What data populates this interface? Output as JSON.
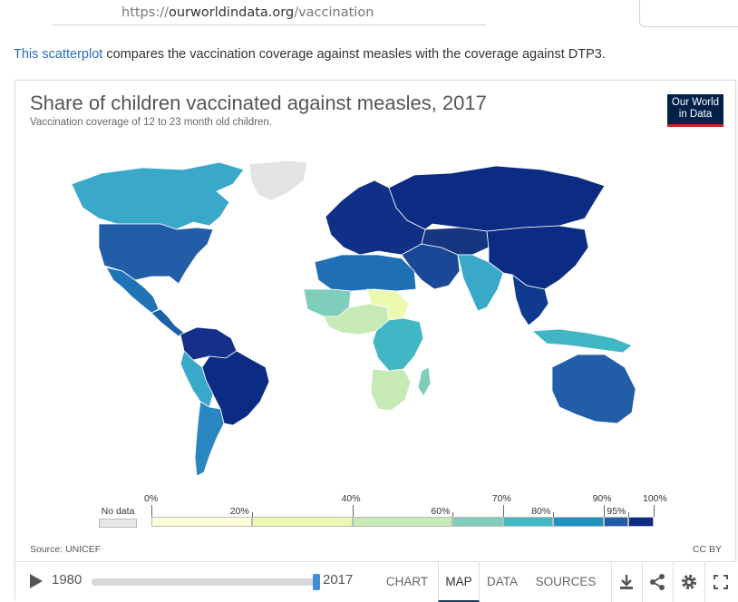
{
  "browser": {
    "url_prefix": "https://",
    "url_host": "ourworldindata.org",
    "url_path": "/vaccination"
  },
  "intro": {
    "link_text": "This scatterplot",
    "rest_text": " compares the vaccination coverage against measles with the coverage against DTP3."
  },
  "chart": {
    "title": "Share of children vaccinated against measles, 2017",
    "subtitle": "Vaccination coverage of 12 to 23 month old children.",
    "logo_line1": "Our World",
    "logo_line2": "in Data",
    "source": "Source: UNICEF",
    "license": "CC BY"
  },
  "chart_data": {
    "type": "heatmap",
    "title": "Share of children vaccinated against measles, 2017",
    "subtitle": "Vaccination coverage of 12 to 23 month old children.",
    "legend": {
      "no_data_label": "No data",
      "no_data_color": "#e8e8e8",
      "bins": [
        {
          "from": 0,
          "to": 20,
          "color": "#ffffd9"
        },
        {
          "from": 20,
          "to": 40,
          "color": "#edf8b1"
        },
        {
          "from": 40,
          "to": 60,
          "color": "#c7e9b4"
        },
        {
          "from": 60,
          "to": 70,
          "color": "#7fcdbb"
        },
        {
          "from": 70,
          "to": 80,
          "color": "#41b6c4"
        },
        {
          "from": 80,
          "to": 90,
          "color": "#1d91c0"
        },
        {
          "from": 90,
          "to": 95,
          "color": "#225ea8"
        },
        {
          "from": 95,
          "to": 100,
          "color": "#0c2c84"
        }
      ],
      "upper_labels": [
        "0%",
        "40%",
        "70%",
        "90%",
        "100%"
      ],
      "lower_labels": [
        "20%",
        "60%",
        "80%",
        "95%"
      ]
    }
  },
  "map_colors": {
    "greenland": "#e3e3e3",
    "canada": "#3aa8c9",
    "usa": "#225ea8",
    "mexico": "#1f74b7",
    "central_america": "#1d5fa8",
    "south_america_north": "#16308a",
    "brazil": "#0c2c84",
    "andes": "#3aa8c9",
    "southern_cone": "#2a86c0",
    "europe": "#102f86",
    "russia": "#0c2c84",
    "middle_east": "#1a4796",
    "central_asia": "#16367f",
    "south_asia": "#3aa8c9",
    "east_asia": "#0c2c84",
    "southeast_asia": "#0f3a8f",
    "indonesia": "#41b6c4",
    "australia": "#225ea8",
    "north_africa": "#1f6fb4",
    "sahel_west": "#7fcdbb",
    "west_africa_low": "#c7e9b4",
    "central_africa": "#edf8b1",
    "east_africa": "#41b6c4",
    "southern_africa": "#c7e9b4",
    "madagascar": "#7fcdbb"
  },
  "controls": {
    "start_year": "1980",
    "end_year": "2017",
    "slider_fraction": 1.0,
    "tabs": [
      "CHART",
      "MAP",
      "DATA",
      "SOURCES"
    ],
    "active_tab": "MAP",
    "icons": [
      "download-icon",
      "share-icon",
      "settings-icon",
      "fullscreen-icon"
    ]
  }
}
